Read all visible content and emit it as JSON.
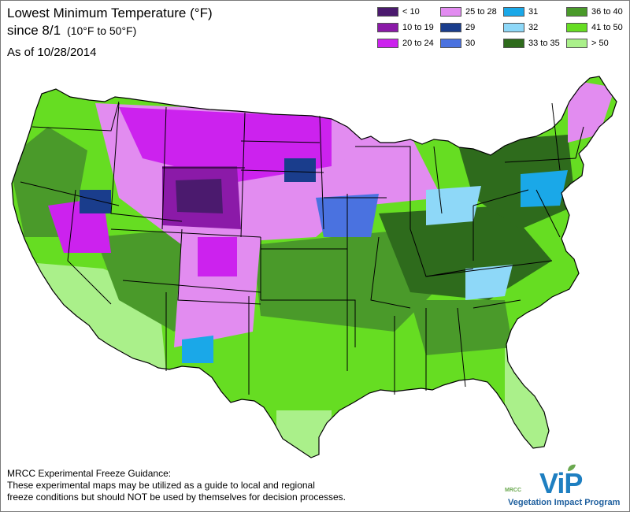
{
  "title": {
    "line1": "Lowest Minimum Temperature (°F)",
    "line2": "since 8/1",
    "range": "(10°F to 50°F)",
    "as_of": "As of 10/28/2014"
  },
  "legend": [
    {
      "label": "< 10",
      "color": "#4b1a6e"
    },
    {
      "label": "10 to 19",
      "color": "#8b1aa8"
    },
    {
      "label": "20 to 24",
      "color": "#cc22ee"
    },
    {
      "label": "25 to 28",
      "color": "#e28cf0"
    },
    {
      "label": "29",
      "color": "#1a3d8c"
    },
    {
      "label": "30",
      "color": "#4a72e0"
    },
    {
      "label": "31",
      "color": "#1aa8e8"
    },
    {
      "label": "32",
      "color": "#8ed8f8"
    },
    {
      "label": "33 to 35",
      "color": "#2e6b1c"
    },
    {
      "label": "36 to 40",
      "color": "#4a9a2a"
    },
    {
      "label": "41 to 50",
      "color": "#66dd22"
    },
    {
      "label": "> 50",
      "color": "#aaf08a"
    }
  ],
  "guidance": {
    "heading": "MRCC Experimental Freeze Guidance:",
    "line1": "These experimental maps may be utilized as a guide to local and regional",
    "line2": "freeze conditions but should NOT be used by themselves for decision processes."
  },
  "logo": {
    "org": "MRCC",
    "mark": "ViP",
    "program": "Vegetation Impact Program",
    "mark_color": "#1e7fc1",
    "leaf_color": "#6aa84f"
  },
  "map_region_colors": {
    "outline": "#000000",
    "ocean": "#ffffff"
  }
}
